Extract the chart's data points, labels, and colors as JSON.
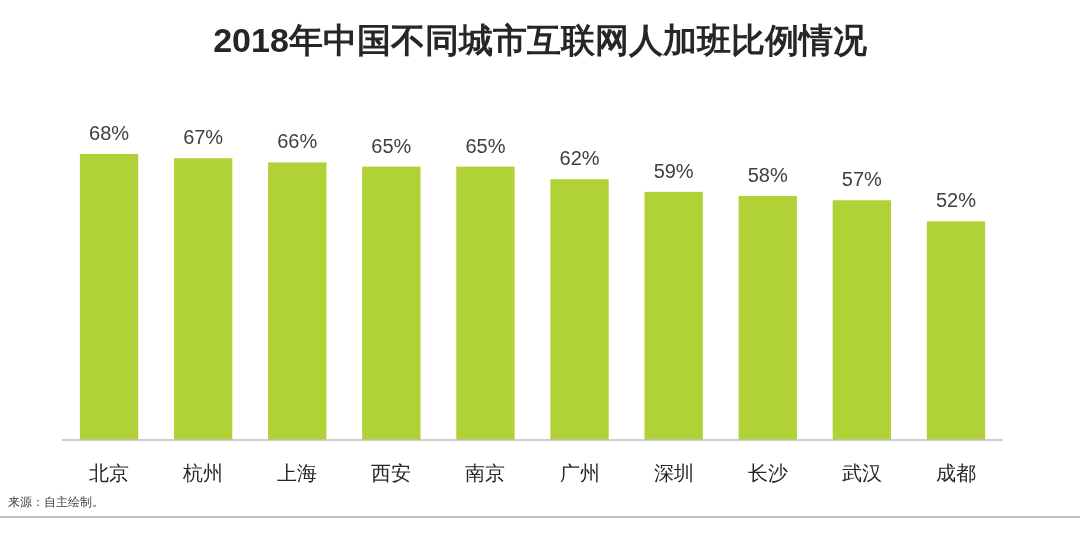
{
  "chart_data": {
    "type": "bar",
    "title": "2018年中国不同城市互联网人加班比例情况",
    "categories": [
      "北京",
      "杭州",
      "上海",
      "西安",
      "南京",
      "广州",
      "深圳",
      "长沙",
      "武汉",
      "成都"
    ],
    "values": [
      68,
      67,
      66,
      65,
      65,
      62,
      59,
      58,
      57,
      52
    ],
    "value_labels": [
      "68%",
      "67%",
      "66%",
      "65%",
      "65%",
      "62%",
      "59%",
      "58%",
      "57%",
      "52%"
    ],
    "color": "#b0d236",
    "annotations": [
      "来源：自主绘制。"
    ]
  }
}
